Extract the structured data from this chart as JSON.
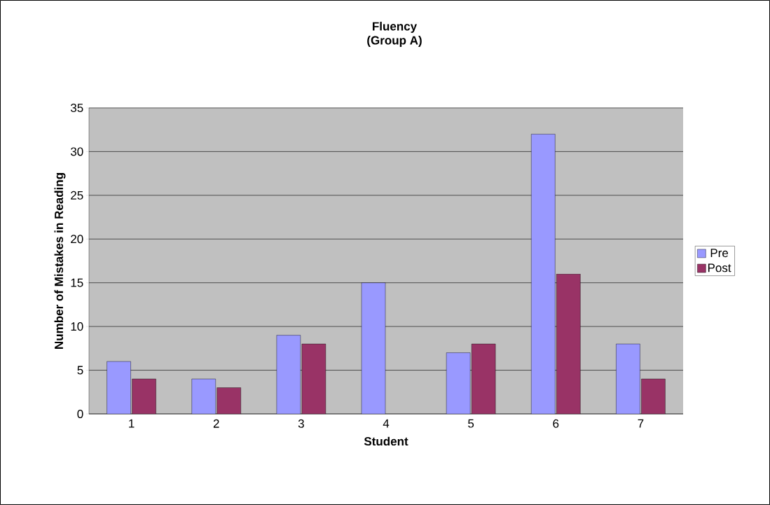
{
  "chart_data": {
    "type": "bar",
    "title": "Fluency",
    "subtitle": "(Group A)",
    "xlabel": "Student",
    "ylabel": "Number of Mistakes in Reading",
    "categories": [
      "1",
      "2",
      "3",
      "4",
      "5",
      "6",
      "7"
    ],
    "series": [
      {
        "name": "Pre",
        "color": "#9999ff",
        "values": [
          6,
          4,
          9,
          15,
          7,
          32,
          8
        ]
      },
      {
        "name": "Post",
        "color": "#993366",
        "values": [
          4,
          3,
          8,
          null,
          8,
          16,
          4
        ]
      }
    ],
    "ylim": [
      0,
      35
    ],
    "yticks": [
      0,
      5,
      10,
      15,
      20,
      25,
      30,
      35
    ],
    "grid": "y",
    "legend": "right"
  }
}
